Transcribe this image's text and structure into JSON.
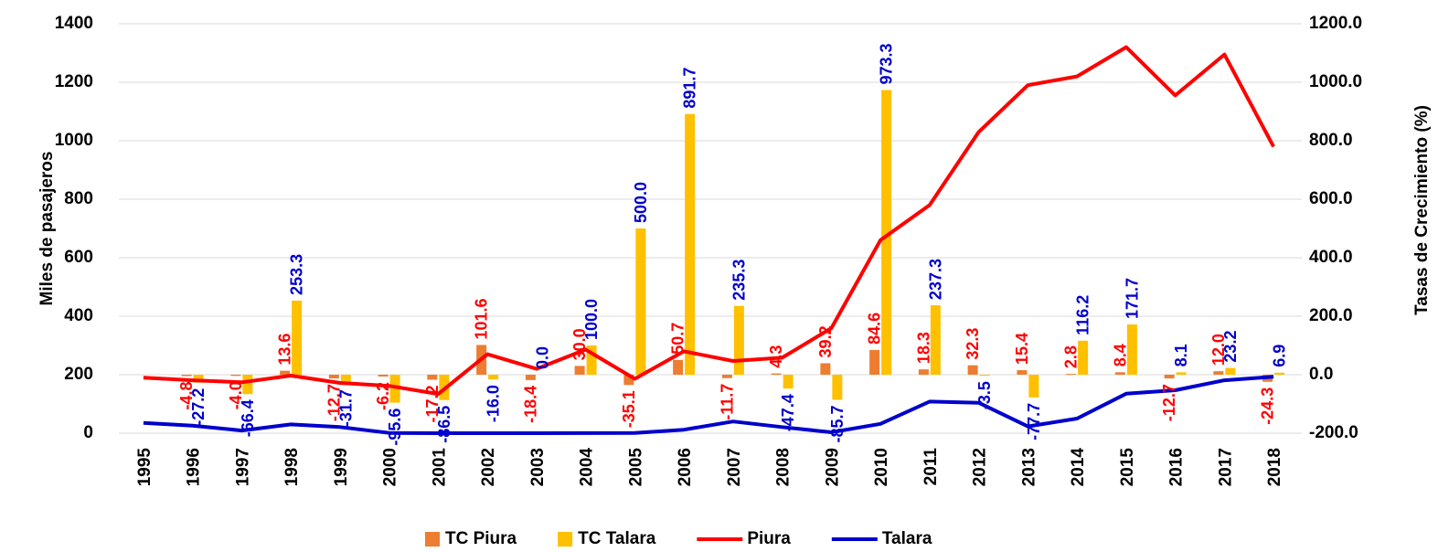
{
  "chart_data": {
    "type": "bar-line",
    "y_label": "Miles de pasajeros",
    "y2_label": "Tasas de Crecimiento (%)",
    "categories": [
      "1995",
      "1996",
      "1997",
      "1998",
      "1999",
      "2000",
      "2001",
      "2002",
      "2003",
      "2004",
      "2005",
      "2006",
      "2007",
      "2008",
      "2009",
      "2010",
      "2011",
      "2012",
      "2013",
      "2014",
      "2015",
      "2016",
      "2017",
      "2018"
    ],
    "ylim": [
      0,
      1400
    ],
    "yticks": [
      0,
      200,
      400,
      600,
      800,
      1000,
      1200,
      1400
    ],
    "y2lim": [
      -200,
      1200
    ],
    "y2ticks": [
      {
        "value": -200,
        "label": "-200.0"
      },
      {
        "value": 0,
        "label": "0.0"
      },
      {
        "value": 200,
        "label": "200.0"
      },
      {
        "value": 400,
        "label": "400.0"
      },
      {
        "value": 600,
        "label": "600.0"
      },
      {
        "value": 800,
        "label": "800.0"
      },
      {
        "value": 1000,
        "label": "1000.0"
      },
      {
        "value": 1200,
        "label": "1200.0"
      }
    ],
    "grid": true,
    "series": [
      {
        "name": "TC Piura",
        "kind": "bar",
        "axis": "y2",
        "color": "#ed7d31",
        "label_color": "#ff0000",
        "values": [
          null,
          -4.8,
          -4.0,
          13.6,
          -12.7,
          -6.2,
          -17.2,
          101.6,
          -18.4,
          30.0,
          -35.1,
          50.7,
          -11.7,
          4.3,
          39.2,
          84.6,
          18.3,
          32.3,
          15.4,
          2.8,
          8.4,
          -12.7,
          12.0,
          -24.3
        ],
        "value_labels": [
          null,
          "-4.8",
          "-4.0",
          "13.6",
          "-12.7",
          "-6.2",
          "-17.2",
          "101.6",
          "-18.4",
          "30.0",
          "-35.1",
          "50.7",
          "-11.7",
          "4.3",
          "39.2",
          "84.6",
          "18.3",
          "32.3",
          "15.4",
          "2.8",
          "8.4",
          "-12.7",
          "12.0",
          "-24.3"
        ]
      },
      {
        "name": "TC Talara",
        "kind": "bar",
        "axis": "y2",
        "color": "#ffc000",
        "label_color": "#0000cc",
        "values": [
          null,
          -27.2,
          -66.4,
          253.3,
          -31.7,
          -95.6,
          -86.5,
          -16.0,
          0.0,
          100.0,
          500.0,
          891.7,
          235.3,
          -47.4,
          -85.7,
          973.3,
          237.3,
          -3.5,
          -77.7,
          116.2,
          171.7,
          8.1,
          23.2,
          6.9
        ],
        "value_labels": [
          null,
          "-27.2",
          "-66.4",
          "253.3",
          "-31.7",
          "-95.6",
          "-86.5",
          "-16.0",
          "0.0",
          "100.0",
          "500.0",
          "891.7",
          "235.3",
          "-47.4",
          "-85.7",
          "973.3",
          "237.3",
          "-3.5",
          "-77.7",
          "116.2",
          "171.7",
          "8.1",
          "23.2",
          "6.9"
        ]
      },
      {
        "name": "Piura",
        "kind": "line",
        "color": "#ff0000",
        "values": [
          190,
          181,
          174,
          197,
          172,
          162,
          134,
          270,
          220,
          286,
          186,
          280,
          247,
          258,
          359,
          660,
          780,
          1030,
          1190,
          1220,
          1320,
          1155,
          1295,
          980
        ]
      },
      {
        "name": "Talara",
        "kind": "line",
        "color": "#0000cc",
        "values": [
          35,
          26,
          9,
          30,
          21,
          1,
          0.1,
          0.1,
          0.1,
          0.2,
          1,
          12,
          40,
          21,
          3,
          32,
          108,
          104,
          23,
          50,
          135,
          147,
          181,
          193
        ]
      }
    ]
  }
}
